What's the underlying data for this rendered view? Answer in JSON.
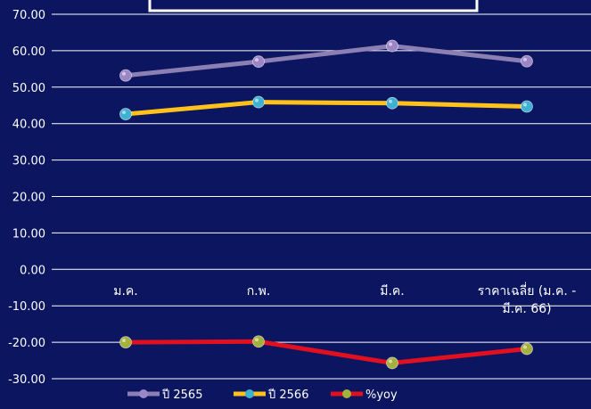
{
  "chart_data": {
    "type": "line",
    "title": "",
    "xlabel": "",
    "ylabel": "",
    "categories": [
      "ม.ค.",
      "ก.พ.",
      "มี.ค.",
      "ราคาเฉลี่ย (ม.ค. - มี.ค. 66)"
    ],
    "category_lines": [
      [
        "ม.ค."
      ],
      [
        "ก.พ."
      ],
      [
        "มี.ค."
      ],
      [
        "ราคาเฉลี่ย (ม.ค. -",
        "มี.ค. 66)"
      ]
    ],
    "ylim": [
      -30,
      70
    ],
    "yticks": [
      70,
      60,
      50,
      40,
      30,
      20,
      10,
      0,
      -10,
      -20,
      -30
    ],
    "ytick_labels": [
      "70.00",
      "60.00",
      "50.00",
      "40.00",
      "30.00",
      "20.00",
      "10.00",
      "0.00",
      "-10.00",
      "-20.00",
      "-30.00"
    ],
    "grid": true,
    "legend_position": "bottom-left",
    "series": [
      {
        "name": "ปี 2565",
        "values": [
          53.2,
          57.0,
          61.3,
          57.1
        ],
        "line_color": "#8b7fb3",
        "marker_color": "#9c86c8"
      },
      {
        "name": "ปี 2566",
        "values": [
          42.6,
          45.9,
          45.6,
          44.7
        ],
        "line_color": "#ffc21a",
        "marker_color": "#3fb2d4"
      },
      {
        "name": "%yoy",
        "values": [
          -20.0,
          -19.8,
          -25.7,
          -21.8
        ],
        "line_color": "#e01020",
        "marker_color": "#a4b13c"
      }
    ]
  },
  "colors": {
    "background": "#0b1560",
    "grid": "#ffffff",
    "text": "#ffffff"
  }
}
